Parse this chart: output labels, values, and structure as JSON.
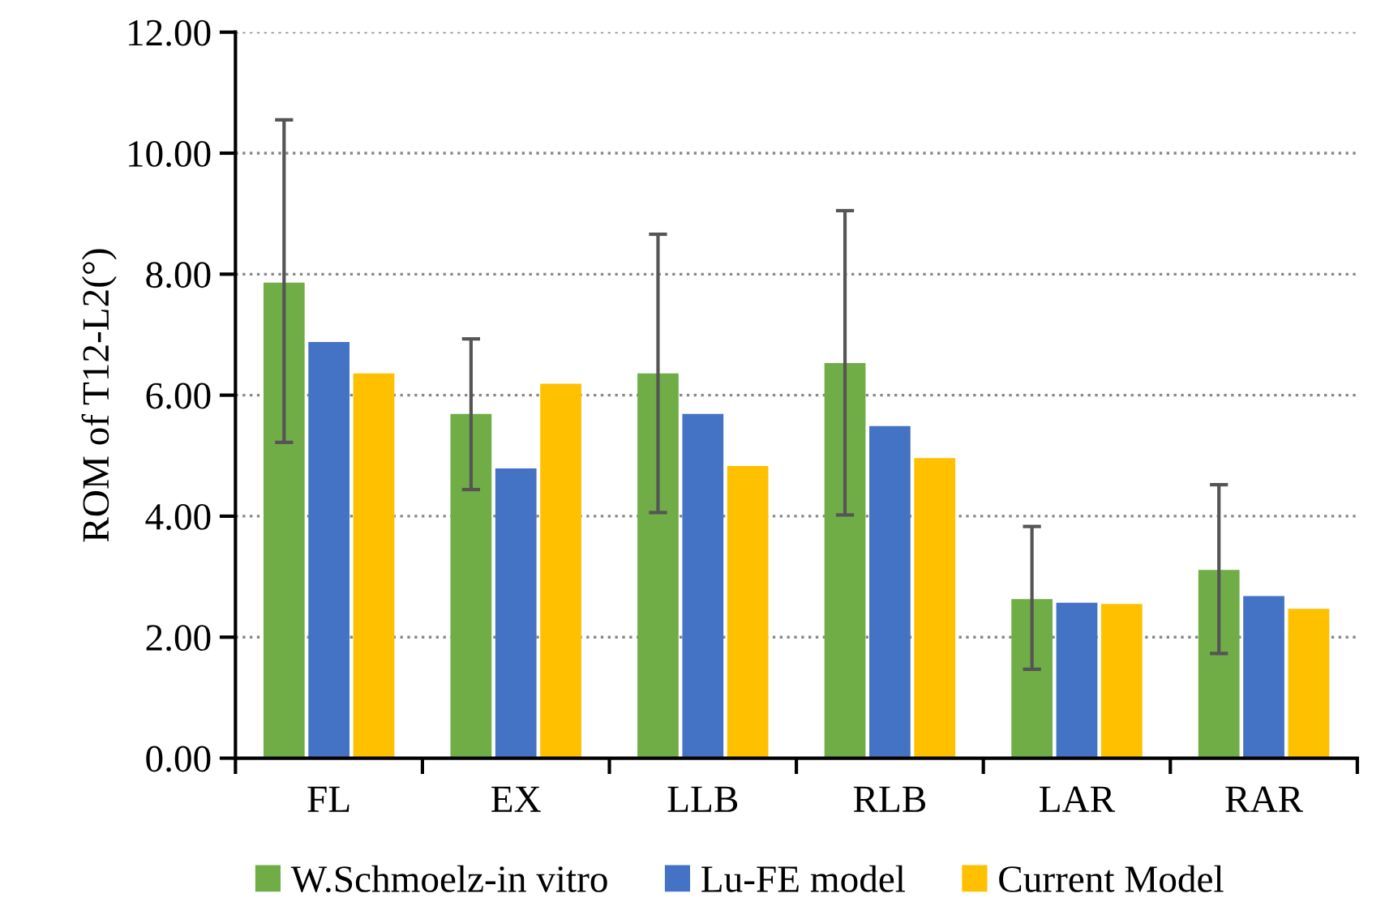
{
  "chart_data": {
    "type": "bar",
    "ylabel": "ROM of T12-L2(°)",
    "categories": [
      "FL",
      "EX",
      "LLB",
      "RLB",
      "LAR",
      "RAR"
    ],
    "series": [
      {
        "name": "W.Schmoelz-in vitro",
        "color": "#70ad47",
        "values": [
          7.86,
          5.69,
          6.36,
          6.53,
          2.63,
          3.11
        ],
        "errors": [
          [
            5.22,
            10.55
          ],
          [
            4.44,
            6.93
          ],
          [
            4.06,
            8.66
          ],
          [
            4.02,
            9.05
          ],
          [
            1.47,
            3.83
          ],
          [
            1.73,
            4.52
          ]
        ]
      },
      {
        "name": "Lu-FE model",
        "color": "#4472c4",
        "values": [
          6.88,
          4.79,
          5.69,
          5.49,
          2.57,
          2.68
        ]
      },
      {
        "name": "Current Model",
        "color": "#ffc000",
        "values": [
          6.36,
          6.19,
          4.83,
          4.96,
          2.55,
          2.47
        ]
      }
    ],
    "ylim": [
      0,
      12
    ],
    "yticks": [
      {
        "value": 0,
        "label": "0.00"
      },
      {
        "value": 2,
        "label": "2.00"
      },
      {
        "value": 4,
        "label": "4.00"
      },
      {
        "value": 6,
        "label": "6.00"
      },
      {
        "value": 8,
        "label": "8.00"
      },
      {
        "value": 10,
        "label": "10.00"
      },
      {
        "value": 12,
        "label": "12.00"
      }
    ],
    "grid": "y",
    "legend": "bottom"
  }
}
